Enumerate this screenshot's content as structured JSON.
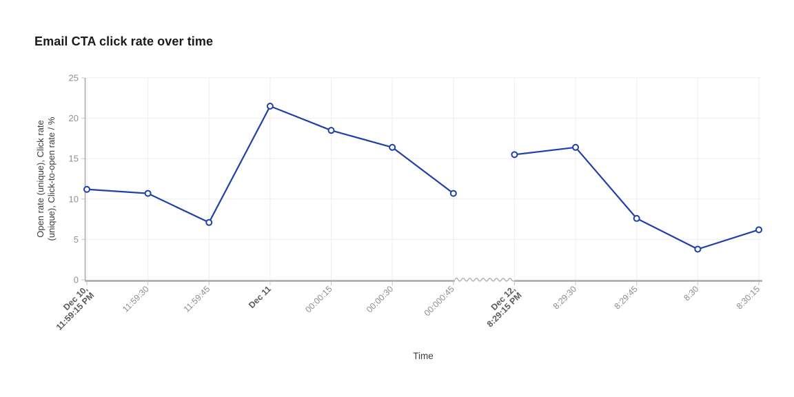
{
  "chart_data": {
    "type": "line",
    "title": "Email CTA click rate over time",
    "xlabel": "Time",
    "ylabel": "Open rate (unique), Click rate (unique), Click-to-open rate / %",
    "ylabel_lines": [
      "Open rate (unique), Click rate",
      "(unique), Click-to-open rate / %"
    ],
    "ylim": [
      0,
      25
    ],
    "yticks": [
      0,
      5,
      10,
      15,
      20,
      25
    ],
    "categories": [
      "Dec 10, 11:59:15 PM",
      "11:59:30",
      "11:59:45",
      "Dec 11",
      "00:00:15",
      "00:00:30",
      "00:000:45",
      "Dec 12, 8:29:15 PM",
      "8:29:30",
      "8:29:45",
      "8:30",
      "8:30:15"
    ],
    "x_ticks": [
      {
        "lines": [
          "Dec 10,",
          "11:59:15 PM"
        ],
        "bold": true
      },
      {
        "lines": [
          "11:59:30"
        ],
        "bold": false
      },
      {
        "lines": [
          "11:59:45"
        ],
        "bold": false
      },
      {
        "lines": [
          "Dec 11"
        ],
        "bold": true
      },
      {
        "lines": [
          "00:00:15"
        ],
        "bold": false
      },
      {
        "lines": [
          "00:00:30"
        ],
        "bold": false
      },
      {
        "lines": [
          "00:000:45"
        ],
        "bold": false
      },
      {
        "lines": [
          "Dec 12,",
          "8:29:15 PM"
        ],
        "bold": true
      },
      {
        "lines": [
          "8:29:30"
        ],
        "bold": false
      },
      {
        "lines": [
          "8:29:45"
        ],
        "bold": false
      },
      {
        "lines": [
          "8:30"
        ],
        "bold": false
      },
      {
        "lines": [
          "8:30:15"
        ],
        "bold": false
      }
    ],
    "series": [
      {
        "name": "Click rate",
        "values": [
          11.2,
          10.7,
          7.1,
          21.5,
          18.5,
          16.4,
          10.7,
          15.5,
          16.4,
          7.6,
          3.8,
          6.2
        ]
      }
    ],
    "axis_break_after_index": 6,
    "line_gap_after_index": 6,
    "grid": true,
    "legend_position": "none",
    "colors": {
      "line": "#1f3fad",
      "marker_fill": "#ffffff",
      "grid": "#ededed",
      "axis": "#a8a8a8",
      "tick_mark": "#c6c6c6",
      "tick_text": "#8f8f8f",
      "tick_text_bold": "#5b5b5b",
      "axis_label": "#3c3c3c",
      "title": "#1a1a1a"
    }
  }
}
